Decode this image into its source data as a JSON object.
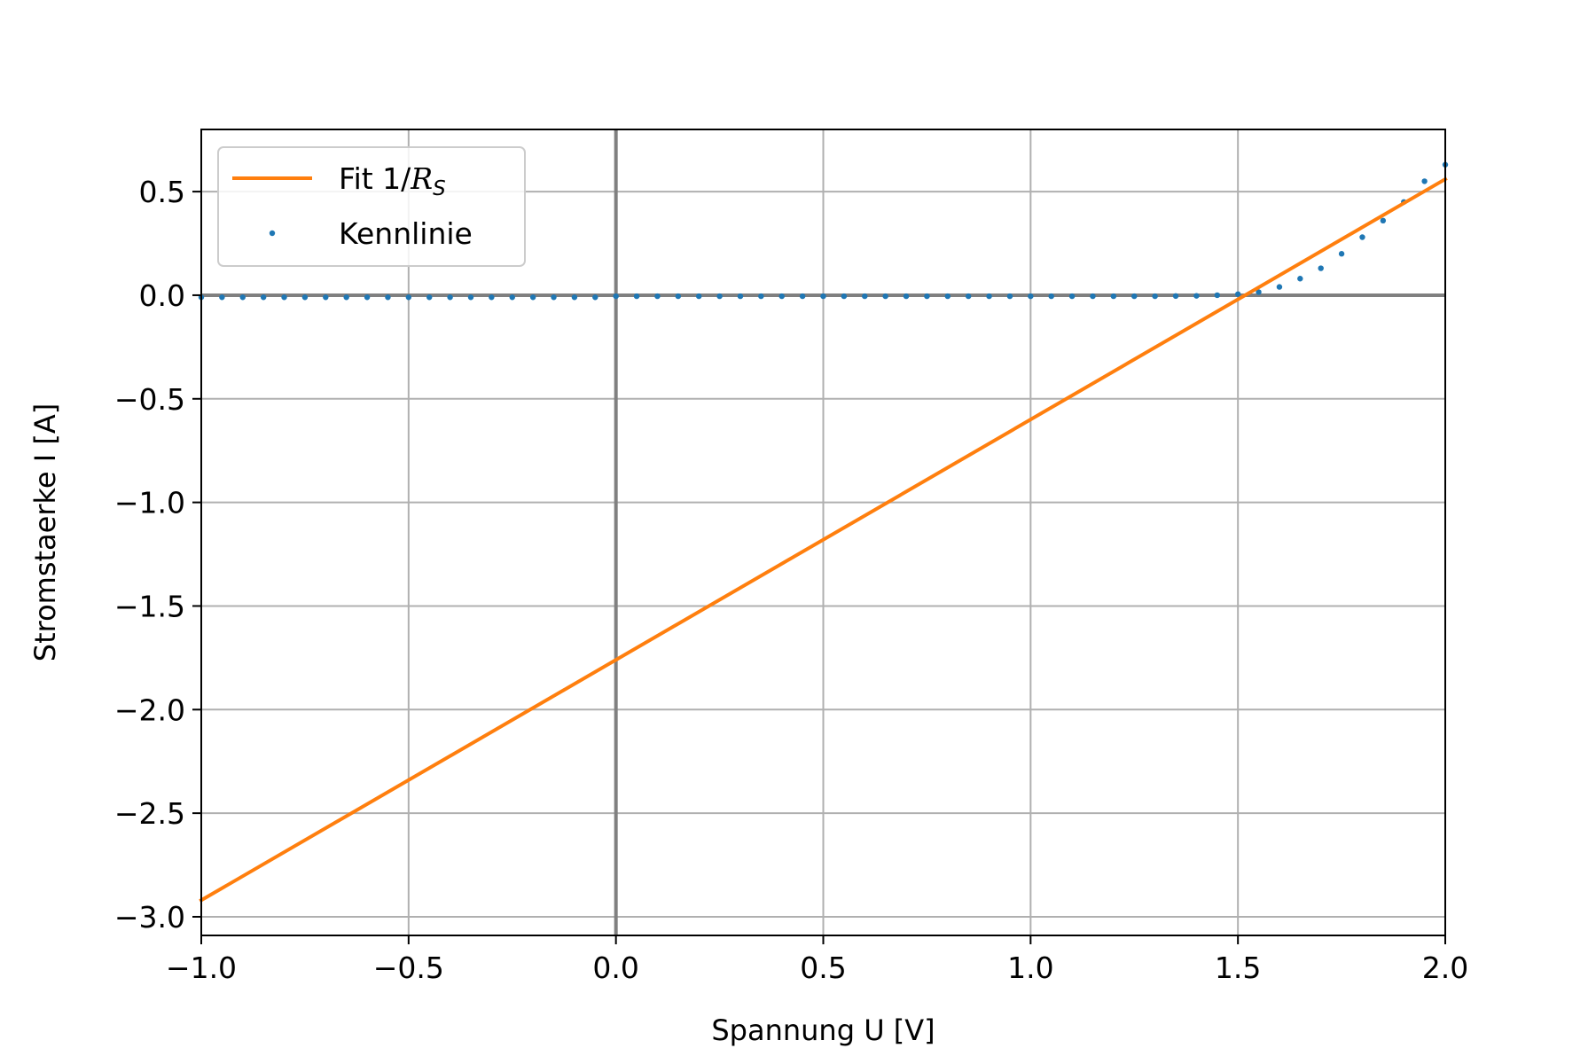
{
  "chart_data": {
    "type": "line",
    "xlabel": "Spannung U [V]",
    "ylabel": "Stromstaerke I [A]",
    "xlim": [
      -1.0,
      2.0
    ],
    "ylim": [
      -3.09,
      0.8
    ],
    "grid": true,
    "legend_position": "top-left",
    "x_ticks": [
      "−1.0",
      "−0.5",
      "0.0",
      "0.5",
      "1.0",
      "1.5",
      "2.0"
    ],
    "x_tick_values": [
      -1.0,
      -0.5,
      0.0,
      0.5,
      1.0,
      1.5,
      2.0
    ],
    "y_ticks": [
      "0.5",
      "0.0",
      "−0.5",
      "−1.0",
      "−1.5",
      "−2.0",
      "−2.5",
      "−3.0"
    ],
    "y_tick_values": [
      0.5,
      0.0,
      -0.5,
      -1.0,
      -1.5,
      -2.0,
      -2.5,
      -3.0
    ],
    "series": [
      {
        "name": "Fit 1/",
        "name_math": "R",
        "name_sub": "S",
        "kind": "line",
        "color": "#ff7f0e",
        "x": [
          -1.0,
          2.0
        ],
        "y": [
          -2.92,
          0.56
        ]
      },
      {
        "name": "Kennlinie",
        "kind": "points",
        "color": "#1f77b4",
        "x": [
          -1.0,
          -0.95,
          -0.9,
          -0.85,
          -0.8,
          -0.75,
          -0.7,
          -0.65,
          -0.6,
          -0.55,
          -0.5,
          -0.45,
          -0.4,
          -0.35,
          -0.3,
          -0.25,
          -0.2,
          -0.15,
          -0.1,
          -0.05,
          0.0,
          0.05,
          0.1,
          0.15,
          0.2,
          0.25,
          0.3,
          0.35,
          0.4,
          0.45,
          0.5,
          0.55,
          0.6,
          0.65,
          0.7,
          0.75,
          0.8,
          0.85,
          0.9,
          0.95,
          1.0,
          1.05,
          1.1,
          1.15,
          1.2,
          1.25,
          1.3,
          1.35,
          1.4,
          1.45,
          1.5,
          1.55,
          1.6,
          1.65,
          1.7,
          1.75,
          1.8,
          1.85,
          1.9,
          1.95,
          2.0
        ],
        "y": [
          -0.01,
          -0.01,
          -0.01,
          -0.01,
          -0.01,
          -0.01,
          -0.01,
          -0.01,
          -0.01,
          -0.01,
          -0.01,
          -0.01,
          -0.01,
          -0.01,
          -0.01,
          -0.01,
          -0.01,
          -0.01,
          -0.01,
          -0.01,
          -0.005,
          -0.005,
          -0.005,
          -0.005,
          -0.005,
          -0.005,
          -0.005,
          -0.005,
          -0.005,
          -0.005,
          -0.005,
          -0.005,
          -0.005,
          -0.005,
          -0.005,
          -0.005,
          -0.005,
          -0.005,
          -0.005,
          -0.005,
          -0.005,
          -0.005,
          -0.005,
          -0.005,
          -0.005,
          -0.005,
          -0.005,
          -0.004,
          -0.003,
          0.0,
          0.005,
          0.015,
          0.04,
          0.08,
          0.13,
          0.2,
          0.28,
          0.36,
          0.45,
          0.55,
          0.63
        ]
      }
    ]
  }
}
